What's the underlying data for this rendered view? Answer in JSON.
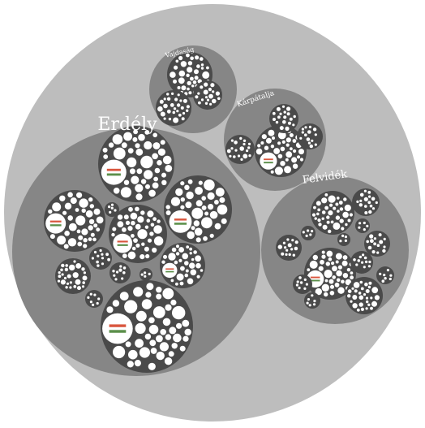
{
  "regions": {
    "erdely": {
      "label": "Erdély"
    },
    "vajdasag": {
      "label": "Vajdaság"
    },
    "karpatalja": {
      "label": "Kárpátalja"
    },
    "felvidek": {
      "label": "Felvidék"
    }
  },
  "colors": {
    "background": "#ffffff",
    "outer_circle": "#bdbdbd",
    "region_circle": "#868686",
    "cluster_circle": "#4a4a4a",
    "leaf_circle": "#ffffff",
    "flag_red": "#d9563e",
    "flag_white": "#ffffff",
    "flag_green": "#5b8f4a"
  }
}
